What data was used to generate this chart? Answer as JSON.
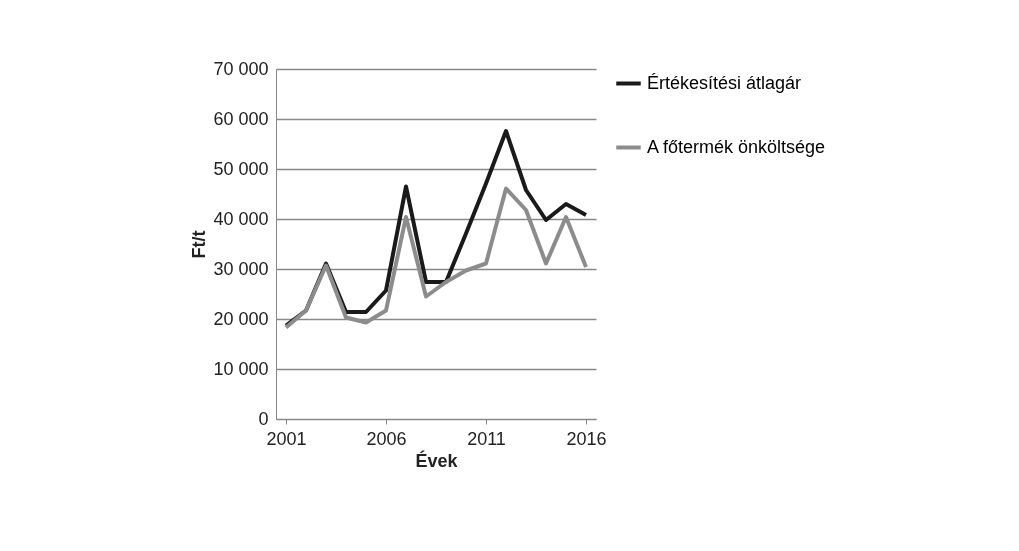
{
  "chart_data": {
    "type": "line",
    "xlabel": "Évek",
    "ylabel": "Ft/t",
    "x": [
      2001,
      2002,
      2003,
      2004,
      2005,
      2006,
      2007,
      2008,
      2009,
      2010,
      2011,
      2012,
      2013,
      2014,
      2015,
      2016
    ],
    "series": [
      {
        "name": "Értékesítési átlagár",
        "color": "#1a1a1a",
        "values": [
          18700,
          21700,
          31100,
          21400,
          21400,
          25700,
          46500,
          27400,
          27400,
          37100,
          47100,
          57600,
          45800,
          39800,
          43000,
          40800
        ]
      },
      {
        "name": "A főtermék önköltsége",
        "color": "#8c8c8c",
        "values": [
          18300,
          21700,
          30700,
          20300,
          19300,
          21700,
          40400,
          24500,
          27400,
          29700,
          31100,
          46100,
          41800,
          31100,
          40400,
          30400
        ]
      }
    ],
    "xlim": [
      2000.5,
      2016.5
    ],
    "xticks": [
      2001,
      2006,
      2011,
      2016
    ],
    "ylim": [
      0,
      70000
    ],
    "yticks": [
      {
        "value": 0,
        "label": "0"
      },
      {
        "value": 10000,
        "label": "10 000"
      },
      {
        "value": 20000,
        "label": "20 000"
      },
      {
        "value": 30000,
        "label": "30 000"
      },
      {
        "value": 40000,
        "label": "40 000"
      },
      {
        "value": 50000,
        "label": "50 000"
      },
      {
        "value": 60000,
        "label": "60 000"
      },
      {
        "value": 70000,
        "label": "70 000"
      }
    ],
    "grid": "y",
    "legend": "right",
    "marker": "none",
    "line_style": "solid"
  }
}
